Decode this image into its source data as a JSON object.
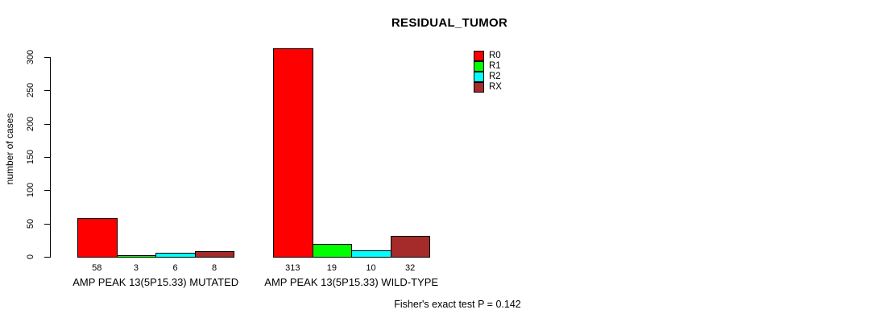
{
  "title": "RESIDUAL_TUMOR",
  "ylabel": "number of cases",
  "footer": "Fisher's exact test P = 0.142",
  "colors": {
    "background": "#ffffff",
    "axis": "#000000",
    "R0": "#ff0000",
    "R1": "#00ff00",
    "R2": "#00ffff",
    "RX": "#a52a2a"
  },
  "chart_data": {
    "type": "bar",
    "title": "RESIDUAL_TUMOR",
    "xlabel": "",
    "ylabel": "number of cases",
    "groups": [
      "AMP PEAK 13(5P15.33) MUTATED",
      "AMP PEAK 13(5P15.33) WILD-TYPE"
    ],
    "series": [
      {
        "name": "R0",
        "color": "#ff0000",
        "values": [
          58,
          313
        ]
      },
      {
        "name": "R1",
        "color": "#00ff00",
        "values": [
          3,
          19
        ]
      },
      {
        "name": "R2",
        "color": "#00ffff",
        "values": [
          6,
          10
        ]
      },
      {
        "name": "RX",
        "color": "#a52a2a",
        "values": [
          8,
          32
        ]
      }
    ],
    "bar_value_labels": true,
    "ylim": [
      0,
      300
    ],
    "yticks": [
      0,
      50,
      100,
      150,
      200,
      250,
      300
    ],
    "grid": false,
    "legend_position": "top-right",
    "annotation": "Fisher's exact test P = 0.142"
  }
}
